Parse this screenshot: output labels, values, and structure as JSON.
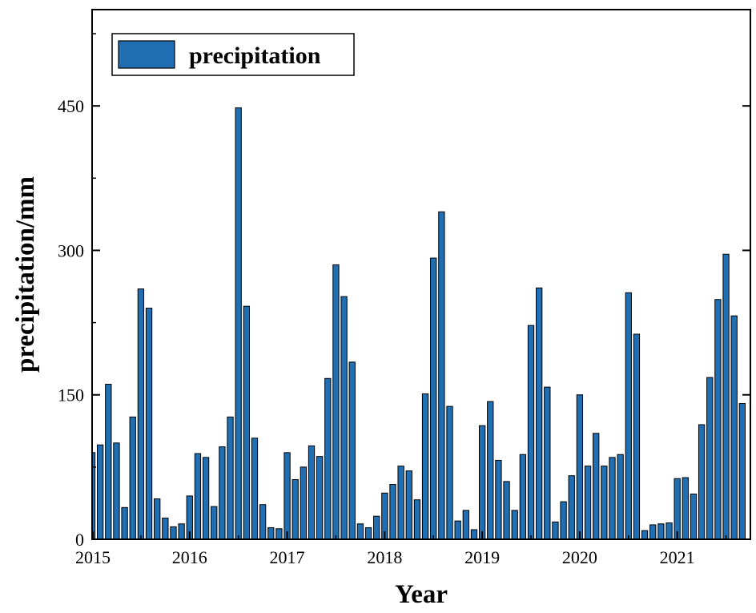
{
  "chart_data": {
    "type": "bar",
    "title": "",
    "xlabel": "Year",
    "ylabel": "precipitation/mm",
    "ylim": [
      0,
      550
    ],
    "yticks": [
      0,
      150,
      300,
      450
    ],
    "ytick_labels": [
      "0",
      "150",
      "300",
      "450"
    ],
    "xlim": [
      0,
      81
    ],
    "xticks": [
      0,
      12,
      24,
      36,
      48,
      60,
      72
    ],
    "xtick_labels": [
      "2015",
      "2016",
      "2017",
      "2018",
      "2019",
      "2020",
      "2021"
    ],
    "grid": false,
    "legend": {
      "position": "top-left",
      "entries": [
        "precipitation"
      ]
    },
    "series": [
      {
        "name": "precipitation",
        "color": "#1f6fb2",
        "values": [
          90,
          98,
          161,
          100,
          33,
          127,
          260,
          240,
          42,
          22,
          13,
          16,
          45,
          89,
          85,
          34,
          96,
          127,
          448,
          242,
          105,
          36,
          12,
          11,
          90,
          62,
          75,
          97,
          86,
          167,
          285,
          252,
          184,
          16,
          12,
          24,
          48,
          57,
          76,
          71,
          41,
          151,
          292,
          340,
          138,
          19,
          30,
          10,
          118,
          143,
          82,
          60,
          30,
          88,
          222,
          261,
          158,
          18,
          39,
          66,
          150,
          76,
          110,
          76,
          85,
          88,
          256,
          213,
          9,
          15,
          16,
          17,
          63,
          64,
          47,
          119,
          168,
          249,
          296,
          232,
          141
        ]
      }
    ]
  }
}
